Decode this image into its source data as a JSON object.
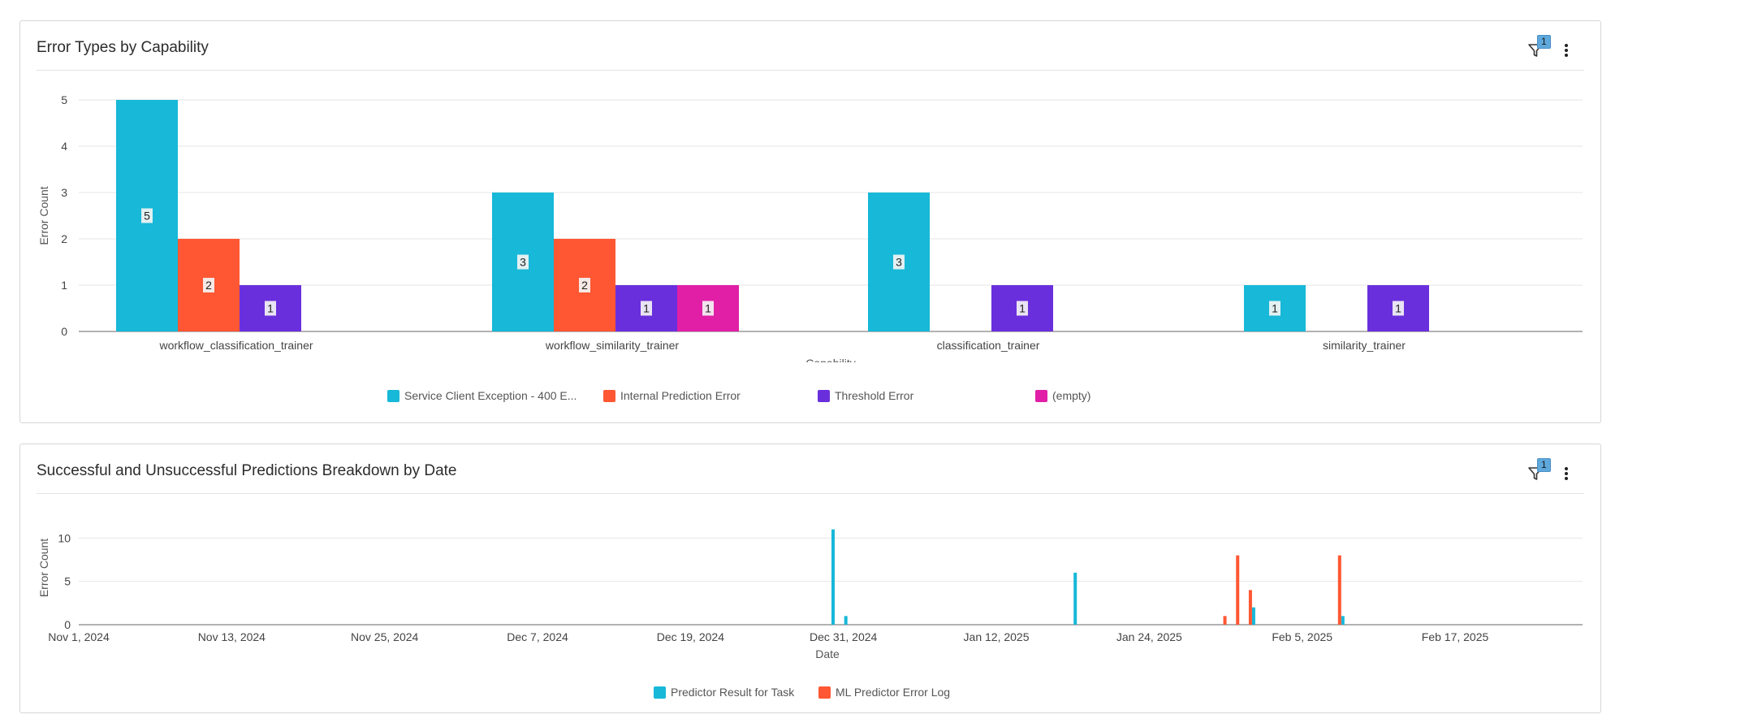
{
  "panels": [
    {
      "title": "Error Types by Capability",
      "filter_count": "1",
      "icons": {
        "filter": "filter-icon",
        "more": "more-vertical-icon"
      }
    },
    {
      "title": "Successful and Unsuccessful Predictions Breakdown by Date",
      "filter_count": "1",
      "icons": {
        "filter": "filter-icon",
        "more": "more-vertical-icon"
      }
    }
  ],
  "chart_data": [
    {
      "type": "bar",
      "title": "Error Types by Capability",
      "xlabel": "Capability",
      "ylabel": "Error Count",
      "ylim": [
        0,
        5
      ],
      "yticks": [
        "0",
        "1",
        "2",
        "3",
        "4",
        "5"
      ],
      "grid": true,
      "legend_position": "bottom",
      "categories": [
        "workflow_classification_trainer",
        "workflow_similarity_trainer",
        "classification_trainer",
        "similarity_trainer"
      ],
      "series": [
        {
          "name": "Service Client Exception - 400 E...",
          "color": "#17b8d8",
          "values": [
            5,
            3,
            3,
            1
          ]
        },
        {
          "name": "Internal Prediction Error",
          "color": "#ff5733",
          "values": [
            2,
            2,
            null,
            null
          ]
        },
        {
          "name": "Threshold Error",
          "color": "#6a2fdc",
          "values": [
            1,
            1,
            1,
            1
          ]
        },
        {
          "name": "(empty)",
          "color": "#e01fa6",
          "values": [
            null,
            1,
            null,
            null
          ]
        }
      ]
    },
    {
      "type": "bar",
      "title": "Successful and Unsuccessful Predictions Breakdown by Date",
      "xlabel": "Date",
      "ylabel": "Error Count",
      "ylim": [
        0,
        12
      ],
      "yticks": [
        "0",
        "5",
        "10"
      ],
      "grid": true,
      "legend_position": "bottom",
      "x_range": [
        "2024-11-01",
        "2025-02-27"
      ],
      "x_ticks": [
        {
          "date": "2024-11-01",
          "label": "Nov 1, 2024"
        },
        {
          "date": "2024-11-13",
          "label": "Nov 13, 2024"
        },
        {
          "date": "2024-11-25",
          "label": "Nov 25, 2024"
        },
        {
          "date": "2024-12-07",
          "label": "Dec 7, 2024"
        },
        {
          "date": "2024-12-19",
          "label": "Dec 19, 2024"
        },
        {
          "date": "2024-12-31",
          "label": "Dec 31, 2024"
        },
        {
          "date": "2025-01-12",
          "label": "Jan 12, 2025"
        },
        {
          "date": "2025-01-24",
          "label": "Jan 24, 2025"
        },
        {
          "date": "2025-02-05",
          "label": "Feb 5, 2025"
        },
        {
          "date": "2025-02-17",
          "label": "Feb 17, 2025"
        }
      ],
      "series": [
        {
          "name": "Predictor Result for Task",
          "color": "#17b8d8",
          "points": [
            [
              "2024-12-30",
              11
            ],
            [
              "2024-12-31",
              1
            ],
            [
              "2025-01-18",
              6
            ],
            [
              "2025-02-01",
              2
            ],
            [
              "2025-02-08",
              1
            ]
          ]
        },
        {
          "name": "ML Predictor Error Log",
          "color": "#ff5733",
          "points": [
            [
              "2025-01-30",
              1
            ],
            [
              "2025-01-31",
              8
            ],
            [
              "2025-02-01",
              4
            ],
            [
              "2025-02-08",
              8
            ]
          ]
        }
      ]
    }
  ]
}
